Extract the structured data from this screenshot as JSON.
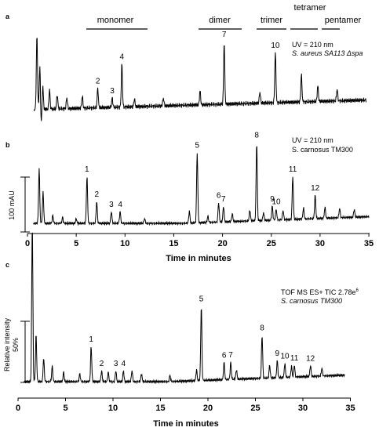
{
  "oligomer_bands": {
    "monomer": "monomer",
    "dimer": "dimer",
    "trimer": "trimer",
    "tetramer": "tetramer",
    "pentamer": "pentamer"
  },
  "chart_data": [
    {
      "type": "line",
      "panel_label": "a",
      "annotation_lines": [
        "UV = 210 nm",
        "S. aureus SA113 Δspa"
      ],
      "xlabel": "",
      "ylabel": "",
      "xlim": [
        0,
        35
      ],
      "xticks": [],
      "peak_labels": [
        {
          "label": "2",
          "x": 7.2
        },
        {
          "label": "3",
          "x": 8.7
        },
        {
          "label": "4",
          "x": 9.7
        },
        {
          "label": "7",
          "x": 20.3
        },
        {
          "label": "10",
          "x": 25.6
        }
      ]
    },
    {
      "type": "line",
      "panel_label": "b",
      "annotation_lines": [
        "UV = 210 nm",
        "S. carnosus TM300"
      ],
      "scale_bar_label": "100 mAU",
      "xlabel": "Time in minutes",
      "ylabel": "",
      "xlim": [
        0,
        35
      ],
      "xticks": [
        "0",
        "5",
        "10",
        "15",
        "20",
        "25",
        "30",
        "35"
      ],
      "peak_labels": [
        {
          "label": "1",
          "x": 6.1
        },
        {
          "label": "2",
          "x": 7.1
        },
        {
          "label": "3",
          "x": 8.6
        },
        {
          "label": "4",
          "x": 9.5
        },
        {
          "label": "5",
          "x": 17.4
        },
        {
          "label": "6",
          "x": 19.6
        },
        {
          "label": "7",
          "x": 20.1
        },
        {
          "label": "8",
          "x": 23.5
        },
        {
          "label": "9",
          "x": 25.1
        },
        {
          "label": "10",
          "x": 25.5
        },
        {
          "label": "11",
          "x": 27.2
        },
        {
          "label": "12",
          "x": 29.5
        }
      ]
    },
    {
      "type": "line",
      "panel_label": "c",
      "annotation_lines": [
        "TOF MS ES+ TIC 2.78e6",
        "S. carnosus TM300"
      ],
      "ylabel": "Relative intensity",
      "scale_bar_label": "50%",
      "xlabel": "Time in minutes",
      "xlim": [
        0,
        35
      ],
      "xticks": [
        "0",
        "5",
        "10",
        "15",
        "20",
        "25",
        "30",
        "35"
      ],
      "peak_labels": [
        {
          "label": "1",
          "x": 7.7
        },
        {
          "label": "2",
          "x": 8.8
        },
        {
          "label": "3",
          "x": 10.3
        },
        {
          "label": "4",
          "x": 11.1
        },
        {
          "label": "5",
          "x": 19.3
        },
        {
          "label": "6",
          "x": 21.7
        },
        {
          "label": "7",
          "x": 22.4
        },
        {
          "label": "8",
          "x": 25.7
        },
        {
          "label": "9",
          "x": 27.3
        },
        {
          "label": "10",
          "x": 28.1
        },
        {
          "label": "11",
          "x": 29.1
        },
        {
          "label": "12",
          "x": 30.8
        }
      ]
    }
  ]
}
